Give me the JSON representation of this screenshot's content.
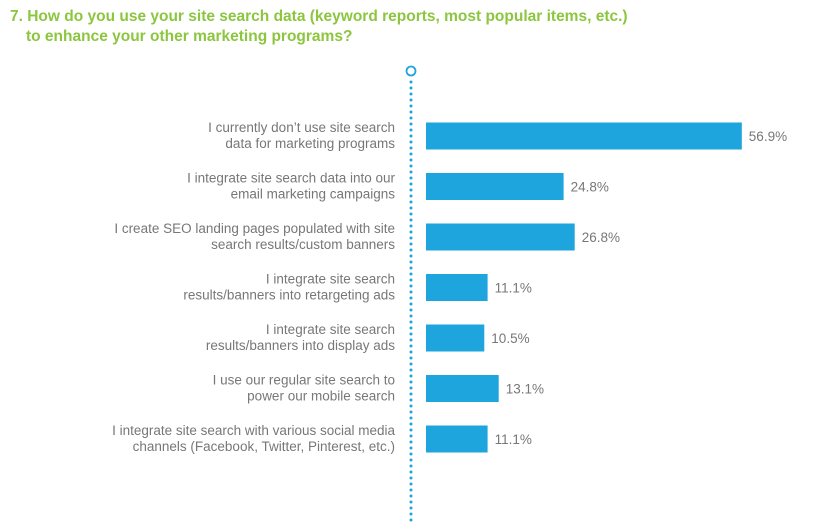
{
  "colors": {
    "title": "#8cc63f",
    "bar": "#1fa5de",
    "axis_dots": "#1fa5de",
    "label_text": "#777777"
  },
  "chart_data": {
    "type": "bar",
    "orientation": "horizontal",
    "title_line1": "7. How do you use your site search data (keyword reports, most popular items, etc.)",
    "title_line2": "to enhance your other marketing programs?",
    "xlabel": "",
    "ylabel": "",
    "xlim": [
      0,
      60
    ],
    "grid": false,
    "categories": [
      [
        "I currently don’t use site search",
        "data for marketing programs"
      ],
      [
        "I integrate site search data into our",
        "email marketing campaigns"
      ],
      [
        "I create SEO landing pages populated with site",
        "search results/custom banners"
      ],
      [
        "I integrate site search",
        "results/banners into retargeting ads"
      ],
      [
        "I integrate site search",
        "results/banners into display ads"
      ],
      [
        "I use our regular site search to",
        "power our mobile search"
      ],
      [
        "I integrate site search with various social media",
        "channels (Facebook, Twitter, Pinterest, etc.)"
      ]
    ],
    "values": [
      56.9,
      24.8,
      26.8,
      11.1,
      10.5,
      13.1,
      11.1
    ],
    "value_labels": [
      "56.9%",
      "24.8%",
      "26.8%",
      "11.1%",
      "10.5%",
      "13.1%",
      "11.1%"
    ]
  }
}
